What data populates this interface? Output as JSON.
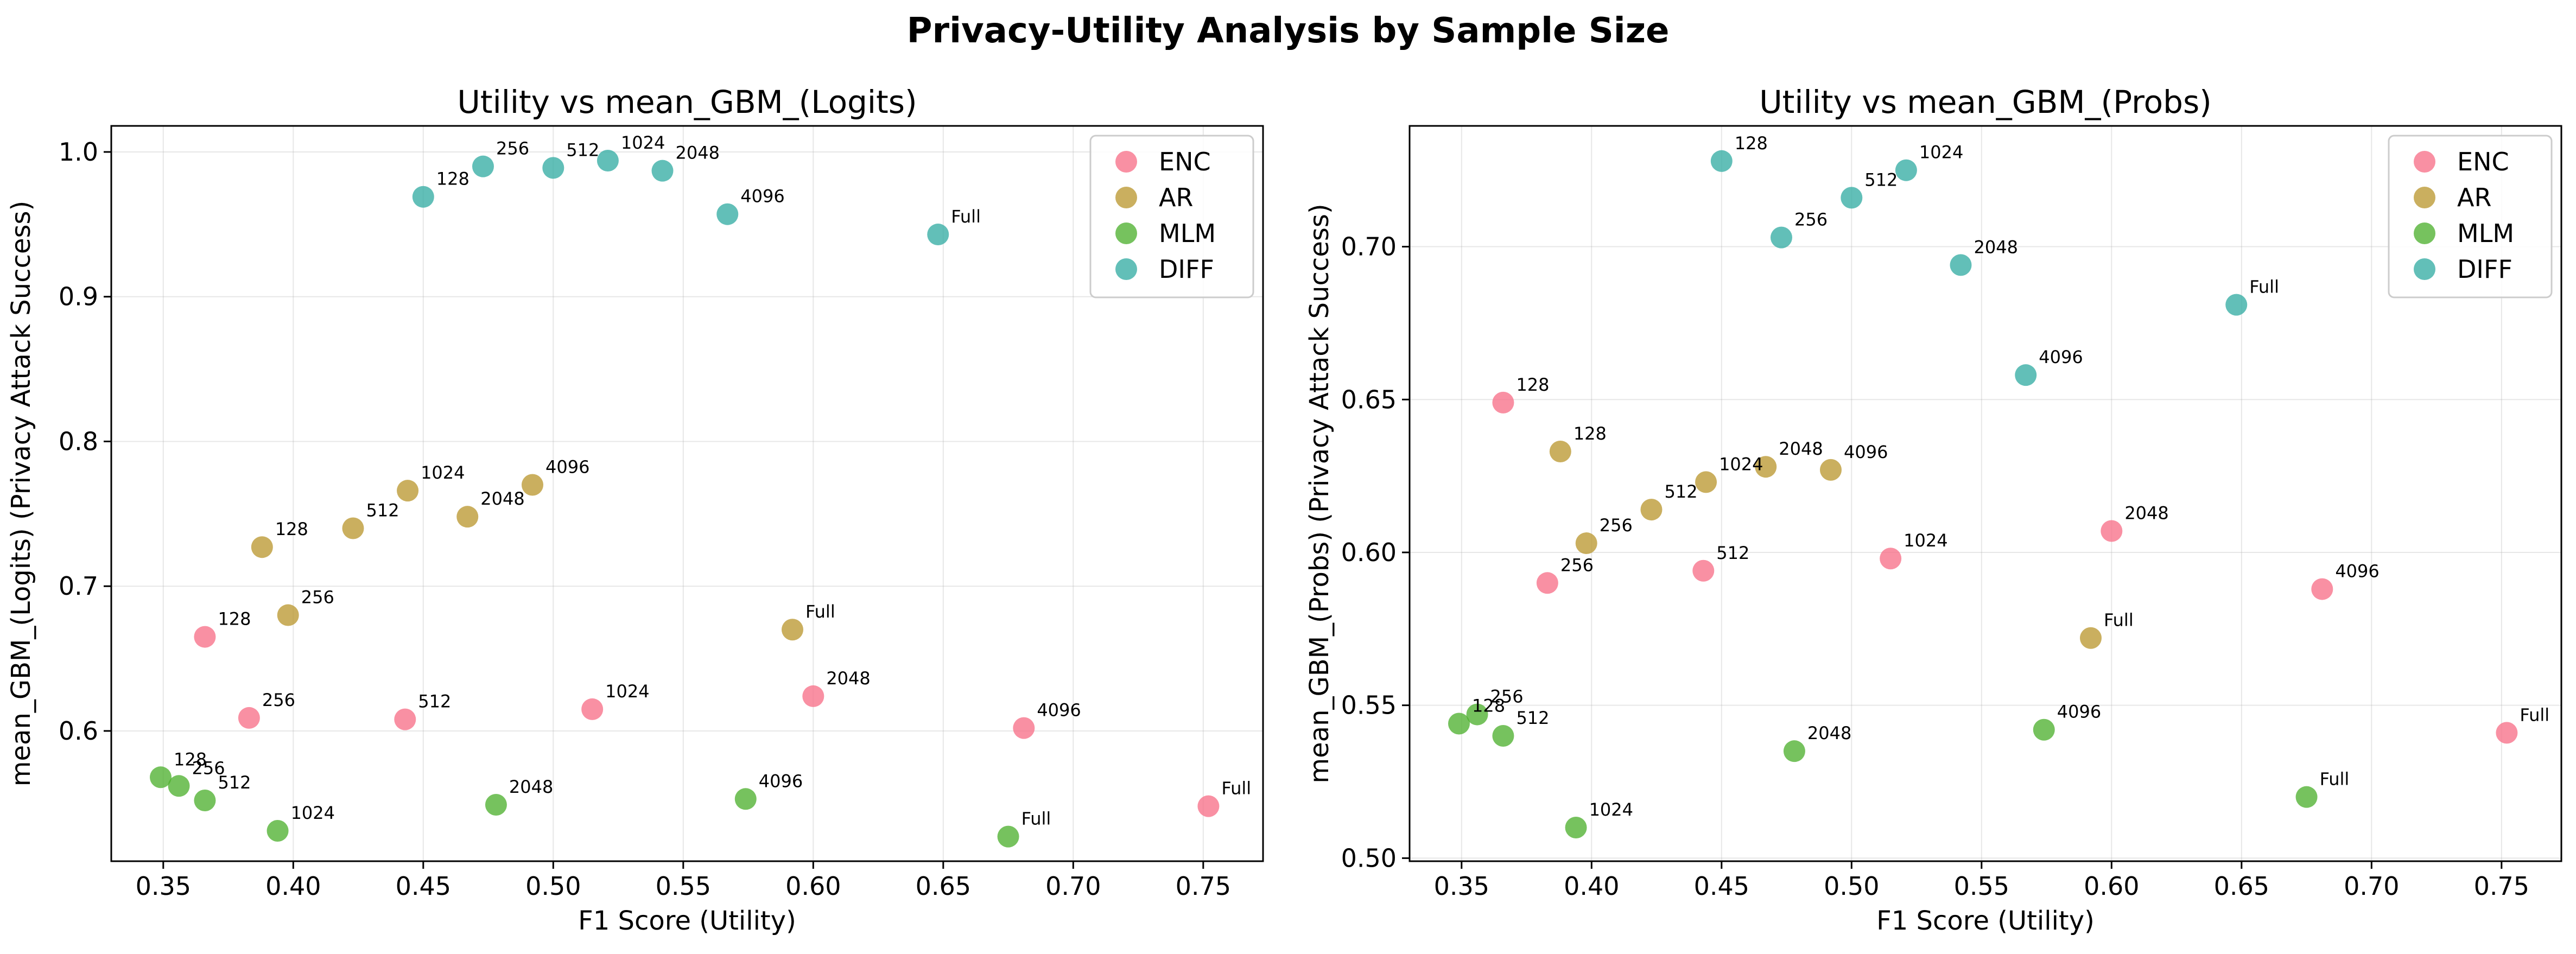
{
  "figure_title": "Privacy-Utility Analysis by Sample Size",
  "colors": {
    "ENC": "#f77189",
    "AR": "#bb9832",
    "MLM": "#50b131",
    "DIFF": "#36ada4"
  },
  "chart_data": [
    {
      "type": "scatter",
      "title": "Utility vs mean_GBM_(Logits)",
      "xlabel": "F1 Score (Utility)",
      "ylabel": "mean_GBM_(Logits) (Privacy Attack Success)",
      "xlim": [
        0.33,
        0.773
      ],
      "ylim": [
        0.51,
        1.018
      ],
      "xticks": [
        "0.35",
        "0.40",
        "0.45",
        "0.50",
        "0.55",
        "0.60",
        "0.65",
        "0.70",
        "0.75"
      ],
      "yticks": [
        "0.6",
        "0.7",
        "0.8",
        "0.9",
        "1.0"
      ],
      "grid": true,
      "legend": "top-right",
      "series": [
        {
          "name": "ENC",
          "points": [
            {
              "x": 0.366,
              "y": 0.665,
              "label": "128"
            },
            {
              "x": 0.383,
              "y": 0.609,
              "label": "256"
            },
            {
              "x": 0.443,
              "y": 0.608,
              "label": "512"
            },
            {
              "x": 0.515,
              "y": 0.615,
              "label": "1024"
            },
            {
              "x": 0.6,
              "y": 0.624,
              "label": "2048"
            },
            {
              "x": 0.681,
              "y": 0.602,
              "label": "4096"
            },
            {
              "x": 0.752,
              "y": 0.548,
              "label": "Full"
            }
          ]
        },
        {
          "name": "AR",
          "points": [
            {
              "x": 0.388,
              "y": 0.727,
              "label": "128"
            },
            {
              "x": 0.398,
              "y": 0.68,
              "label": "256"
            },
            {
              "x": 0.423,
              "y": 0.74,
              "label": "512"
            },
            {
              "x": 0.444,
              "y": 0.766,
              "label": "1024"
            },
            {
              "x": 0.467,
              "y": 0.748,
              "label": "2048"
            },
            {
              "x": 0.492,
              "y": 0.77,
              "label": "4096"
            },
            {
              "x": 0.592,
              "y": 0.67,
              "label": "Full"
            }
          ]
        },
        {
          "name": "MLM",
          "points": [
            {
              "x": 0.349,
              "y": 0.568,
              "label": "128"
            },
            {
              "x": 0.356,
              "y": 0.562,
              "label": "256"
            },
            {
              "x": 0.366,
              "y": 0.552,
              "label": "512"
            },
            {
              "x": 0.394,
              "y": 0.531,
              "label": "1024"
            },
            {
              "x": 0.478,
              "y": 0.549,
              "label": "2048"
            },
            {
              "x": 0.574,
              "y": 0.553,
              "label": "4096"
            },
            {
              "x": 0.675,
              "y": 0.527,
              "label": "Full"
            }
          ]
        },
        {
          "name": "DIFF",
          "points": [
            {
              "x": 0.45,
              "y": 0.969,
              "label": "128"
            },
            {
              "x": 0.473,
              "y": 0.99,
              "label": "256"
            },
            {
              "x": 0.5,
              "y": 0.989,
              "label": "512"
            },
            {
              "x": 0.521,
              "y": 0.994,
              "label": "1024"
            },
            {
              "x": 0.542,
              "y": 0.987,
              "label": "2048"
            },
            {
              "x": 0.567,
              "y": 0.957,
              "label": "4096"
            },
            {
              "x": 0.648,
              "y": 0.943,
              "label": "Full"
            }
          ]
        }
      ]
    },
    {
      "type": "scatter",
      "title": "Utility vs mean_GBM_(Probs)",
      "xlabel": "F1 Score (Utility)",
      "ylabel": "mean_GBM_(Probs) (Privacy Attack Success)",
      "xlim": [
        0.33,
        0.773
      ],
      "ylim": [
        0.499,
        0.7395
      ],
      "xticks": [
        "0.35",
        "0.40",
        "0.45",
        "0.50",
        "0.55",
        "0.60",
        "0.65",
        "0.70",
        "0.75"
      ],
      "yticks": [
        "0.50",
        "0.55",
        "0.60",
        "0.65",
        "0.70"
      ],
      "grid": true,
      "legend": "top-right",
      "series": [
        {
          "name": "ENC",
          "points": [
            {
              "x": 0.366,
              "y": 0.649,
              "label": "128"
            },
            {
              "x": 0.383,
              "y": 0.59,
              "label": "256"
            },
            {
              "x": 0.443,
              "y": 0.594,
              "label": "512"
            },
            {
              "x": 0.515,
              "y": 0.598,
              "label": "1024"
            },
            {
              "x": 0.6,
              "y": 0.607,
              "label": "2048"
            },
            {
              "x": 0.681,
              "y": 0.588,
              "label": "4096"
            },
            {
              "x": 0.752,
              "y": 0.541,
              "label": "Full"
            }
          ]
        },
        {
          "name": "AR",
          "points": [
            {
              "x": 0.388,
              "y": 0.633,
              "label": "128"
            },
            {
              "x": 0.398,
              "y": 0.603,
              "label": "256"
            },
            {
              "x": 0.423,
              "y": 0.614,
              "label": "512"
            },
            {
              "x": 0.444,
              "y": 0.623,
              "label": "1024"
            },
            {
              "x": 0.467,
              "y": 0.628,
              "label": "2048"
            },
            {
              "x": 0.492,
              "y": 0.627,
              "label": "4096"
            },
            {
              "x": 0.592,
              "y": 0.572,
              "label": "Full"
            }
          ]
        },
        {
          "name": "MLM",
          "points": [
            {
              "x": 0.349,
              "y": 0.544,
              "label": "128"
            },
            {
              "x": 0.356,
              "y": 0.547,
              "label": "256"
            },
            {
              "x": 0.366,
              "y": 0.54,
              "label": "512"
            },
            {
              "x": 0.394,
              "y": 0.51,
              "label": "1024"
            },
            {
              "x": 0.478,
              "y": 0.535,
              "label": "2048"
            },
            {
              "x": 0.574,
              "y": 0.542,
              "label": "4096"
            },
            {
              "x": 0.675,
              "y": 0.52,
              "label": "Full"
            }
          ]
        },
        {
          "name": "DIFF",
          "points": [
            {
              "x": 0.45,
              "y": 0.728,
              "label": "128"
            },
            {
              "x": 0.473,
              "y": 0.703,
              "label": "256"
            },
            {
              "x": 0.5,
              "y": 0.716,
              "label": "512"
            },
            {
              "x": 0.521,
              "y": 0.725,
              "label": "1024"
            },
            {
              "x": 0.542,
              "y": 0.694,
              "label": "2048"
            },
            {
              "x": 0.567,
              "y": 0.658,
              "label": "4096"
            },
            {
              "x": 0.648,
              "y": 0.681,
              "label": "Full"
            }
          ]
        }
      ]
    }
  ]
}
